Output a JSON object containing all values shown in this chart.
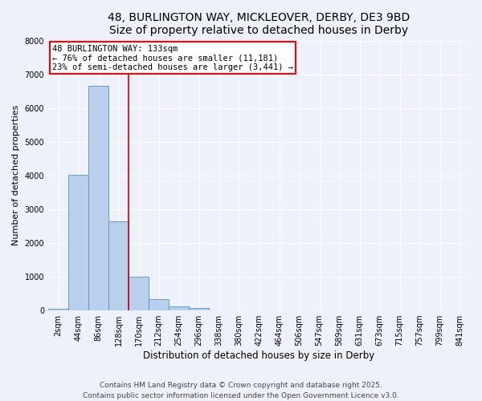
{
  "title": "48, BURLINGTON WAY, MICKLEOVER, DERBY, DE3 9BD",
  "subtitle": "Size of property relative to detached houses in Derby",
  "xlabel": "Distribution of detached houses by size in Derby",
  "ylabel": "Number of detached properties",
  "categories": [
    "2sqm",
    "44sqm",
    "86sqm",
    "128sqm",
    "170sqm",
    "212sqm",
    "254sqm",
    "296sqm",
    "338sqm",
    "380sqm",
    "422sqm",
    "464sqm",
    "506sqm",
    "547sqm",
    "589sqm",
    "631sqm",
    "673sqm",
    "715sqm",
    "757sqm",
    "799sqm",
    "841sqm"
  ],
  "values": [
    50,
    4020,
    6650,
    2650,
    1000,
    340,
    120,
    70,
    10,
    0,
    0,
    0,
    0,
    0,
    0,
    0,
    0,
    0,
    0,
    0,
    0
  ],
  "bar_color": "#b8d0ec",
  "bar_edge_color": "#5a8fc0",
  "property_line_color": "#cc0000",
  "annotation_title": "48 BURLINGTON WAY: 133sqm",
  "annotation_line1": "← 76% of detached houses are smaller (11,181)",
  "annotation_line2": "23% of semi-detached houses are larger (3,441) →",
  "annotation_box_color": "white",
  "annotation_box_edge_color": "red",
  "ylim": [
    0,
    8000
  ],
  "yticks": [
    0,
    1000,
    2000,
    3000,
    4000,
    5000,
    6000,
    7000,
    8000
  ],
  "bg_color": "#eef1fa",
  "grid_color": "white",
  "footer_line1": "Contains HM Land Registry data © Crown copyright and database right 2025.",
  "footer_line2": "Contains public sector information licensed under the Open Government Licence v3.0.",
  "title_fontsize": 10,
  "xlabel_fontsize": 8.5,
  "ylabel_fontsize": 8,
  "tick_fontsize": 7,
  "footer_fontsize": 6.5,
  "annotation_fontsize": 7.5
}
